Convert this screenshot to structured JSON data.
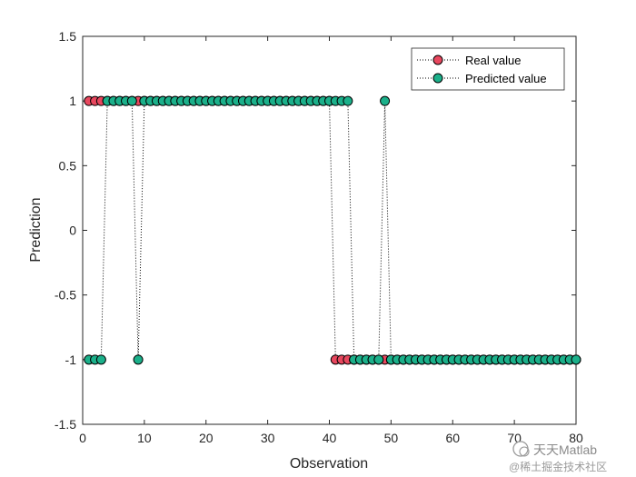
{
  "chart_data": {
    "type": "line",
    "title": "",
    "xlabel": "Observation",
    "ylabel": "Prediction",
    "xlim": [
      0,
      80
    ],
    "ylim": [
      -1.5,
      1.5
    ],
    "xticks": [
      "0",
      "10",
      "20",
      "30",
      "40",
      "50",
      "60",
      "70",
      "80"
    ],
    "yticks": [
      "1.5",
      "1",
      "0.5",
      "0",
      "-0.5",
      "-1",
      "-1.5"
    ],
    "grid": false,
    "legend_position": "top-right",
    "x": [
      1,
      2,
      3,
      4,
      5,
      6,
      7,
      8,
      9,
      10,
      11,
      12,
      13,
      14,
      15,
      16,
      17,
      18,
      19,
      20,
      21,
      22,
      23,
      24,
      25,
      26,
      27,
      28,
      29,
      30,
      31,
      32,
      33,
      34,
      35,
      36,
      37,
      38,
      39,
      40,
      41,
      42,
      43,
      44,
      45,
      46,
      47,
      48,
      49,
      50,
      51,
      52,
      53,
      54,
      55,
      56,
      57,
      58,
      59,
      60,
      61,
      62,
      63,
      64,
      65,
      66,
      67,
      68,
      69,
      70,
      71,
      72,
      73,
      74,
      75,
      76,
      77,
      78,
      79,
      80
    ],
    "series": [
      {
        "name": "Real value",
        "color": "#e8475e",
        "values": [
          1,
          1,
          1,
          1,
          1,
          1,
          1,
          1,
          1,
          1,
          1,
          1,
          1,
          1,
          1,
          1,
          1,
          1,
          1,
          1,
          1,
          1,
          1,
          1,
          1,
          1,
          1,
          1,
          1,
          1,
          1,
          1,
          1,
          1,
          1,
          1,
          1,
          1,
          1,
          1,
          -1,
          -1,
          -1,
          -1,
          -1,
          -1,
          -1,
          -1,
          -1,
          -1,
          -1,
          -1,
          -1,
          -1,
          -1,
          -1,
          -1,
          -1,
          -1,
          -1,
          -1,
          -1,
          -1,
          -1,
          -1,
          -1,
          -1,
          -1,
          -1,
          -1,
          -1,
          -1,
          -1,
          -1,
          -1,
          -1,
          -1,
          -1,
          -1,
          -1
        ]
      },
      {
        "name": "Predicted value",
        "color": "#1bb08a",
        "values": [
          -1,
          -1,
          -1,
          1,
          1,
          1,
          1,
          1,
          -1,
          1,
          1,
          1,
          1,
          1,
          1,
          1,
          1,
          1,
          1,
          1,
          1,
          1,
          1,
          1,
          1,
          1,
          1,
          1,
          1,
          1,
          1,
          1,
          1,
          1,
          1,
          1,
          1,
          1,
          1,
          1,
          1,
          1,
          1,
          -1,
          -1,
          -1,
          -1,
          -1,
          1,
          -1,
          -1,
          -1,
          -1,
          -1,
          -1,
          -1,
          -1,
          -1,
          -1,
          -1,
          -1,
          -1,
          -1,
          -1,
          -1,
          -1,
          -1,
          -1,
          -1,
          -1,
          -1,
          -1,
          -1,
          -1,
          -1,
          -1,
          -1,
          -1,
          -1,
          -1
        ]
      }
    ]
  },
  "watermark": {
    "line1": "天天Matlab",
    "line2": "@稀土掘金技术社区"
  }
}
